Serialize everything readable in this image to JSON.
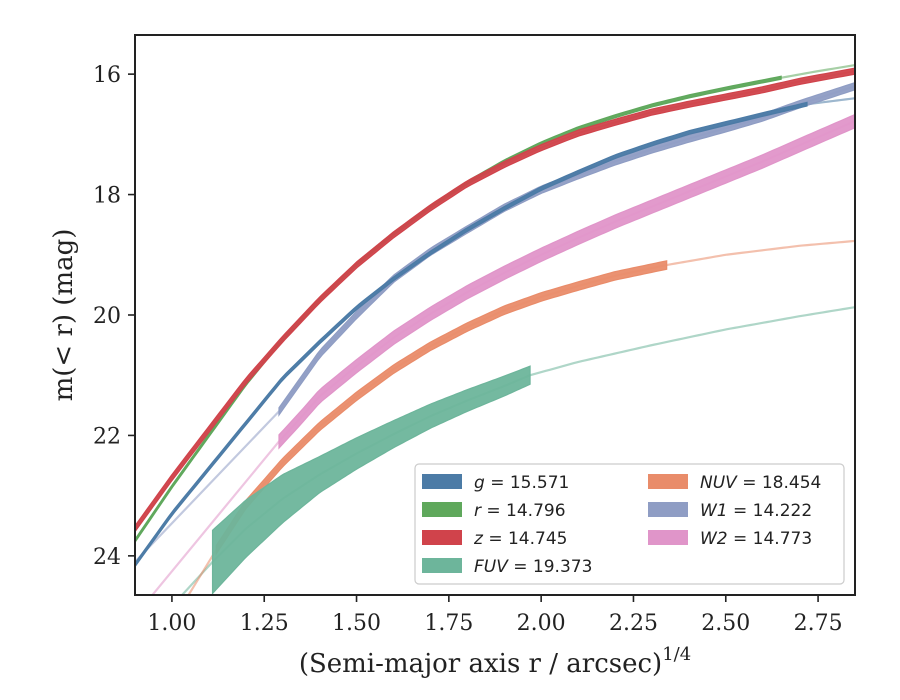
{
  "chart_data": {
    "type": "line",
    "xlabel": "(Semi-major axis r / arcsec)",
    "xlabel_var": "r",
    "xlabel_sup": "1/4",
    "ylabel": "m(< r) (mag)",
    "xlim": [
      0.9,
      2.85
    ],
    "ylim": [
      24.65,
      15.35
    ],
    "y_inverted": true,
    "xticks": [
      1.0,
      1.25,
      1.5,
      1.75,
      2.0,
      2.25,
      2.5,
      2.75
    ],
    "xtick_labels": [
      "1.00",
      "1.25",
      "1.50",
      "1.75",
      "2.00",
      "2.25",
      "2.50",
      "2.75"
    ],
    "yticks": [
      16,
      18,
      20,
      22,
      24
    ],
    "ytick_labels": [
      "16",
      "18",
      "20",
      "22",
      "24"
    ],
    "legend_position": "lower-right",
    "legend_columns": 2,
    "series": [
      {
        "name": "g",
        "label_value": "15.571",
        "color": "#4c7ba6",
        "x": [
          0.9,
          1.0,
          1.1,
          1.2,
          1.3,
          1.4,
          1.5,
          1.6,
          1.7,
          1.8,
          1.9,
          2.0,
          2.1,
          2.2,
          2.3,
          2.4,
          2.5,
          2.6,
          2.72,
          2.85
        ],
        "y": [
          24.15,
          23.3,
          22.55,
          21.8,
          21.05,
          20.45,
          19.88,
          19.4,
          18.97,
          18.58,
          18.23,
          17.9,
          17.63,
          17.37,
          17.16,
          16.97,
          16.82,
          16.67,
          16.5,
          16.4
        ],
        "band": [
          0.9,
          2.72
        ],
        "width": 0.06
      },
      {
        "name": "r",
        "label_value": "14.796",
        "color": "#5fa85c",
        "x": [
          0.9,
          1.0,
          1.1,
          1.2,
          1.3,
          1.4,
          1.5,
          1.6,
          1.7,
          1.8,
          1.9,
          2.0,
          2.1,
          2.2,
          2.3,
          2.4,
          2.5,
          2.65,
          2.75,
          2.85
        ],
        "y": [
          23.75,
          22.85,
          22.0,
          21.15,
          20.4,
          19.75,
          19.15,
          18.65,
          18.2,
          17.8,
          17.45,
          17.15,
          16.9,
          16.7,
          16.52,
          16.37,
          16.24,
          16.06,
          15.95,
          15.85
        ],
        "band": [
          0.9,
          2.65
        ],
        "width": 0.05
      },
      {
        "name": "z",
        "label_value": "14.745",
        "color": "#d0434b",
        "x": [
          0.9,
          1.0,
          1.1,
          1.2,
          1.3,
          1.4,
          1.5,
          1.6,
          1.7,
          1.8,
          1.9,
          2.0,
          2.1,
          2.2,
          2.3,
          2.4,
          2.5,
          2.6,
          2.7,
          2.85
        ],
        "y": [
          23.55,
          22.7,
          21.9,
          21.1,
          20.4,
          19.75,
          19.17,
          18.67,
          18.22,
          17.82,
          17.5,
          17.22,
          16.98,
          16.8,
          16.63,
          16.5,
          16.38,
          16.26,
          16.12,
          15.95
        ],
        "band": [
          0.9,
          2.85
        ],
        "width": 0.1
      },
      {
        "name": "FUV",
        "label_value": "19.373",
        "color": "#6db59b",
        "x": [
          1.11,
          1.2,
          1.3,
          1.4,
          1.5,
          1.6,
          1.7,
          1.8,
          1.9,
          1.97,
          2.1,
          2.3,
          2.5,
          2.7,
          2.85
        ],
        "y": [
          24.1,
          23.55,
          23.05,
          22.65,
          22.3,
          21.98,
          21.68,
          21.42,
          21.18,
          21.0,
          20.78,
          20.5,
          20.24,
          20.02,
          19.87
        ],
        "band": [
          1.11,
          1.97
        ],
        "widths": [
          1.05,
          0.95,
          0.8,
          0.6,
          0.52,
          0.45,
          0.4,
          0.36,
          0.33,
          0.3
        ],
        "faint_start_x": 0.9,
        "faint_start_y": 25.5
      },
      {
        "name": "NUV",
        "label_value": "18.454",
        "color": "#e98c6a",
        "x": [
          1.12,
          1.2,
          1.3,
          1.4,
          1.5,
          1.6,
          1.7,
          1.8,
          1.9,
          2.0,
          2.1,
          2.2,
          2.34,
          2.5,
          2.7,
          2.85
        ],
        "y": [
          23.9,
          23.15,
          22.45,
          21.85,
          21.35,
          20.9,
          20.52,
          20.2,
          19.92,
          19.7,
          19.52,
          19.35,
          19.17,
          19.0,
          18.85,
          18.77
        ],
        "band": [
          1.12,
          2.34
        ],
        "width": 0.14,
        "faint_start_x": 0.95,
        "faint_start_y": 25.6
      },
      {
        "name": "W1",
        "label_value": "14.222",
        "color": "#8f9dc4",
        "x": [
          1.29,
          1.4,
          1.5,
          1.6,
          1.7,
          1.8,
          1.9,
          2.0,
          2.1,
          2.2,
          2.3,
          2.4,
          2.5,
          2.6,
          2.7,
          2.85
        ],
        "y": [
          21.6,
          20.65,
          20.0,
          19.4,
          18.95,
          18.58,
          18.22,
          17.92,
          17.68,
          17.45,
          17.25,
          17.07,
          16.9,
          16.72,
          16.5,
          16.2
        ],
        "band": [
          1.29,
          2.85
        ],
        "width": 0.12,
        "faint_start_x": 0.9,
        "faint_start_y": 24.1
      },
      {
        "name": "W2",
        "label_value": "14.773",
        "color": "#e095c9",
        "x": [
          1.29,
          1.35,
          1.4,
          1.5,
          1.6,
          1.7,
          1.8,
          1.9,
          2.0,
          2.1,
          2.2,
          2.3,
          2.4,
          2.5,
          2.6,
          2.7,
          2.85
        ],
        "y": [
          22.1,
          21.7,
          21.35,
          20.85,
          20.38,
          19.98,
          19.62,
          19.3,
          19.0,
          18.72,
          18.45,
          18.2,
          17.95,
          17.7,
          17.45,
          17.18,
          16.78
        ],
        "band": [
          1.29,
          2.85
        ],
        "width": 0.22,
        "faint_start_x": 0.9,
        "faint_start_y": 25.0
      }
    ]
  }
}
